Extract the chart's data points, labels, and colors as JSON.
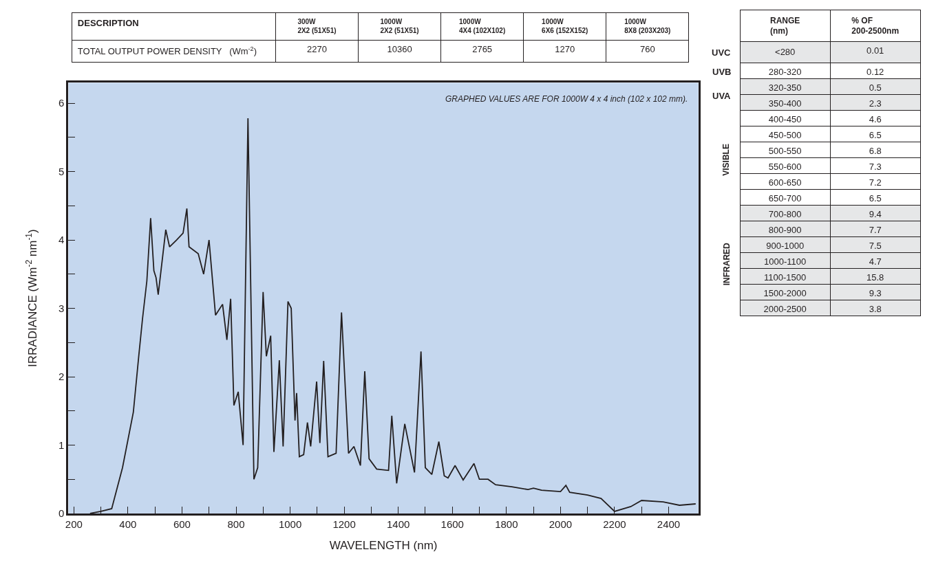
{
  "chart_data": [
    {
      "type": "other",
      "categories": [
        "DESCRIPTION",
        "300W\n2X2 (51X51)",
        "1000W\n2X2 (51X51)",
        "1000W\n4X4 (102X102)",
        "1000W\n6X6 (152X152)",
        "1000W\n8X8 (203X203)"
      ],
      "cell_labels": [
        [
          "TOTAL OUTPUT POWER DENSITY   (Wm$^{-2}$)",
          "2270",
          "10360",
          "2765",
          "1270",
          "760"
        ]
      ]
    },
    {
      "type": "other",
      "categories": [
        null,
        "RANGE\n(nm)",
        "% OF\n200-2500nm"
      ],
      "cell_labels": [
        [
          "UVC",
          "<280",
          "0.01"
        ],
        [
          "UVB",
          "280-320",
          "0.12"
        ],
        [
          "UVA",
          "320-350",
          "0.5"
        ],
        [
          null,
          "350-400",
          "2.3"
        ],
        [
          "VISIBLE",
          "400-450",
          "4.6"
        ],
        [
          null,
          "450-500",
          "6.5"
        ],
        [
          null,
          "500-550",
          "6.8"
        ],
        [
          null,
          "550-600",
          "7.3"
        ],
        [
          null,
          "600-650",
          "7.2"
        ],
        [
          null,
          "650-700",
          "6.5"
        ],
        [
          "INFRARED",
          "700-800",
          "9.4"
        ],
        [
          null,
          "800-900",
          "7.7"
        ],
        [
          null,
          "900-1000",
          "7.5"
        ],
        [
          null,
          "1000-1100",
          "4.7"
        ],
        [
          null,
          "1100-1500",
          "15.8"
        ],
        [
          null,
          "1500-2000",
          "9.3"
        ],
        [
          null,
          "2000-2500",
          "3.8"
        ]
      ]
    },
    {
      "type": "line",
      "xlabel": "WAVELENGTH (nm)",
      "ylabel": "IRRADIANCE (Wm$^{-2}$ nm$^{-1}$)",
      "annotations": [
        "GRAPHED VALUES ARE FOR 1000W 4 x 4 inch (102 x 102 mm)."
      ],
      "xlim": [
        180,
        2510
      ],
      "ylim": [
        0,
        6.3
      ],
      "xticks": [
        200,
        {
          "value": 300,
          "label": null
        },
        400,
        {
          "value": 500,
          "label": null
        },
        600,
        {
          "value": 700,
          "label": null
        },
        800,
        {
          "value": 900,
          "label": null
        },
        1000,
        {
          "value": 1100,
          "label": null
        },
        1200,
        {
          "value": 1300,
          "label": null
        },
        1400,
        {
          "value": 1500,
          "label": null
        },
        1600,
        {
          "value": 1700,
          "label": null
        },
        1800,
        {
          "value": 1900,
          "label": null
        },
        2000,
        {
          "value": 2100,
          "label": null
        },
        2200,
        {
          "value": 2300,
          "label": null
        },
        2400
      ],
      "yticks": [
        0,
        {
          "value": 0.5,
          "label": null
        },
        1,
        {
          "value": 1.5,
          "label": null
        },
        2,
        {
          "value": 2.5,
          "label": null
        },
        3,
        {
          "value": 3.5,
          "label": null
        },
        4,
        {
          "value": 4.5,
          "label": null
        },
        5,
        {
          "value": 5.5,
          "label": null
        },
        6
      ],
      "grid": false,
      "marker": "none",
      "line_style": "solid",
      "series": [
        {
          "color": "#231f20",
          "x": [
            260,
            300,
            340,
            380,
            420,
            440,
            454,
            470,
            484,
            496,
            504,
            512,
            540,
            554,
            580,
            604,
            618,
            626,
            660,
            680,
            700,
            724,
            750,
            766,
            780,
            792,
            808,
            826,
            844,
            866,
            880,
            900,
            912,
            928,
            940,
            960,
            974,
            992,
            1004,
            1018,
            1024,
            1034,
            1050,
            1064,
            1076,
            1098,
            1110,
            1124,
            1140,
            1170,
            1190,
            1216,
            1236,
            1260,
            1276,
            1292,
            1320,
            1364,
            1376,
            1394,
            1424,
            1460,
            1484,
            1500,
            1524,
            1550,
            1570,
            1584,
            1610,
            1640,
            1680,
            1700,
            1732,
            1760,
            1820,
            1880,
            1900,
            1930,
            2000,
            2020,
            2034,
            2100,
            2150,
            2200,
            2260,
            2300,
            2380,
            2440,
            2500
          ],
          "values": [
            0.0,
            0.03,
            0.07,
            0.67,
            1.48,
            2.3,
            2.85,
            3.4,
            4.32,
            3.55,
            3.45,
            3.2,
            4.15,
            3.9,
            4.0,
            4.1,
            4.46,
            3.9,
            3.8,
            3.5,
            4.0,
            2.9,
            3.06,
            2.54,
            3.14,
            1.58,
            1.78,
            1.0,
            5.78,
            0.5,
            0.67,
            3.24,
            2.3,
            2.6,
            0.9,
            2.24,
            0.98,
            3.1,
            3.0,
            1.36,
            1.76,
            0.83,
            0.86,
            1.33,
            0.98,
            1.93,
            1.03,
            2.23,
            0.83,
            0.88,
            2.94,
            0.88,
            0.98,
            0.7,
            2.08,
            0.8,
            0.65,
            0.63,
            1.43,
            0.44,
            1.31,
            0.6,
            2.37,
            0.67,
            0.57,
            1.05,
            0.55,
            0.52,
            0.7,
            0.49,
            0.73,
            0.5,
            0.5,
            0.42,
            0.39,
            0.35,
            0.37,
            0.34,
            0.32,
            0.41,
            0.31,
            0.27,
            0.22,
            0.03,
            0.1,
            0.19,
            0.17,
            0.12,
            0.14
          ]
        }
      ]
    }
  ]
}
